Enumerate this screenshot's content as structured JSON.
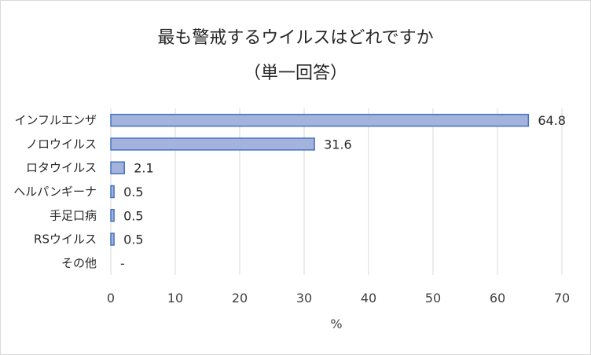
{
  "chart_data": {
    "type": "bar",
    "orientation": "horizontal",
    "title": "最も警戒するウイルスはどれですか",
    "subtitle": "（単一回答）",
    "xlabel": "%",
    "ylabel": "",
    "categories": [
      "インフルエンザ",
      "ノロウイルス",
      "ロタウイルス",
      "ヘルパンギーナ",
      "手足口病",
      "RSウイルス",
      "その他"
    ],
    "values": [
      64.8,
      31.6,
      2.1,
      0.5,
      0.5,
      0.5,
      null
    ],
    "data_labels": [
      "64.8",
      "31.6",
      "2.1",
      "0.5",
      "0.5",
      "0.5",
      "-"
    ],
    "xlim": [
      0,
      70
    ],
    "x_ticks": [
      0,
      10,
      20,
      30,
      40,
      50,
      60,
      70
    ],
    "x_tick_labels": [
      "0",
      "10",
      "20",
      "30",
      "40",
      "50",
      "60",
      "70"
    ],
    "grid": "vertical",
    "legend": "none",
    "colors": {
      "bar_fill": "#a4b3dc",
      "bar_stroke": "#4472c4",
      "grid": "#d9d9d9",
      "text": "#262626"
    }
  }
}
